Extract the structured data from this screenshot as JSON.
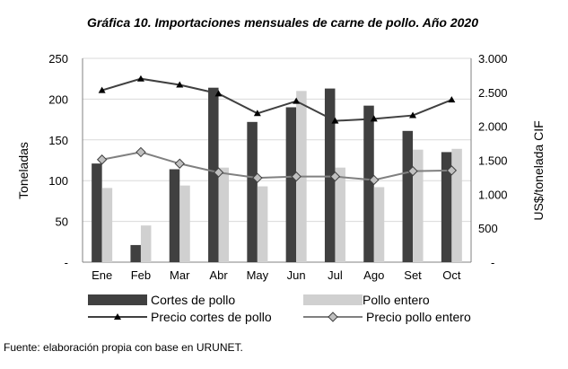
{
  "chart_data": {
    "type": "bar",
    "title": "Gráfica 10. Importaciones mensuales de carne de pollo. Año 2020",
    "categories": [
      "Ene",
      "Feb",
      "Mar",
      "Abr",
      "May",
      "Jun",
      "Jul",
      "Ago",
      "Set",
      "Oct"
    ],
    "ylabel": "Toneladas",
    "y2label": "US$/tonelada CIF",
    "ylim": [
      0,
      250
    ],
    "y2lim": [
      0,
      3000
    ],
    "yticks": [
      "-",
      "50",
      "100",
      "150",
      "200",
      "250"
    ],
    "y2ticks": [
      "-",
      "500",
      "1.000",
      "1.500",
      "2.000",
      "2.500",
      "3.000"
    ],
    "grid": true,
    "legend_position": "bottom",
    "series": [
      {
        "name": "Cortes de pollo",
        "kind": "bar",
        "axis": "left",
        "color": "#404040",
        "values": [
          121,
          21,
          114,
          214,
          172,
          190,
          213,
          192,
          161,
          135
        ]
      },
      {
        "name": "Pollo entero",
        "kind": "bar",
        "axis": "left",
        "color": "#d0d0d0",
        "values": [
          91,
          45,
          94,
          116,
          93,
          210,
          116,
          92,
          138,
          139
        ]
      },
      {
        "name": "Precio cortes de pollo",
        "kind": "line",
        "axis": "right",
        "color": "#404040",
        "marker": "triangle",
        "values": [
          2530,
          2700,
          2610,
          2480,
          2190,
          2370,
          2080,
          2110,
          2160,
          2390
        ]
      },
      {
        "name": "Precio pollo entero",
        "kind": "line",
        "axis": "right",
        "color": "#808080",
        "marker": "diamond",
        "values": [
          1510,
          1620,
          1450,
          1320,
          1240,
          1260,
          1260,
          1210,
          1340,
          1350
        ]
      }
    ],
    "source_note": "Fuente: elaboración propia con base en URUNET."
  }
}
